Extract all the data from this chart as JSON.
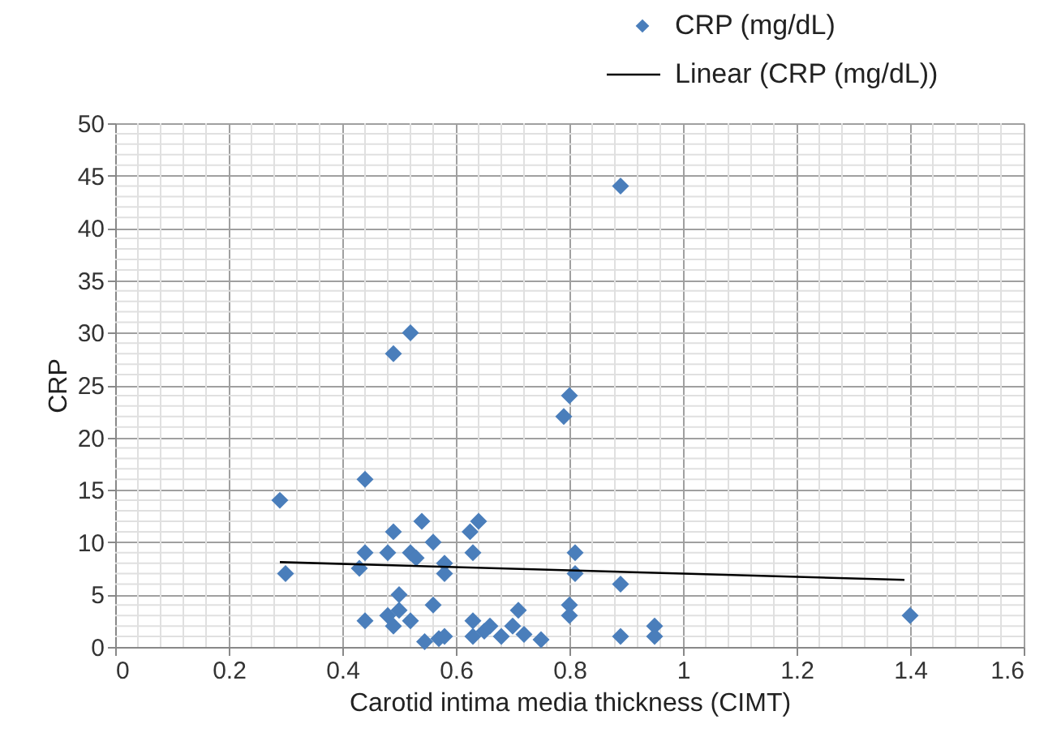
{
  "chart_data": {
    "type": "scatter",
    "xlabel": "Carotid intima media thickness (CIMT)",
    "ylabel": "CRP",
    "xlim": [
      0,
      1.6
    ],
    "xticks": [
      0,
      0.2,
      0.4,
      0.6,
      0.8,
      1,
      1.2,
      1.4,
      1.6
    ],
    "ylim": [
      0,
      50
    ],
    "yticks": [
      0,
      5,
      10,
      15,
      20,
      25,
      30,
      35,
      40,
      45,
      50
    ],
    "grid": true,
    "legend": "top right",
    "marker": "diamond",
    "series": [
      {
        "name": "CRP (mg/dL)",
        "color": "#4a7ebb",
        "x": [
          0.29,
          0.3,
          0.44,
          0.43,
          0.44,
          0.44,
          0.48,
          0.49,
          0.49,
          0.52,
          0.5,
          0.5,
          0.48,
          0.49,
          0.52,
          0.52,
          0.53,
          0.54,
          0.56,
          0.58,
          0.58,
          0.56,
          0.545,
          0.57,
          0.58,
          0.625,
          0.64,
          0.63,
          0.63,
          0.63,
          0.65,
          0.66,
          0.68,
          0.7,
          0.71,
          0.72,
          0.75,
          0.79,
          0.8,
          0.8,
          0.8,
          0.81,
          0.81,
          0.89,
          0.89,
          0.89,
          0.95,
          0.95,
          1.4
        ],
        "values": [
          14,
          7,
          16,
          7.5,
          9,
          2.5,
          9,
          11,
          28,
          30,
          5,
          3.5,
          3,
          2,
          2.5,
          9,
          8.5,
          12,
          10,
          8,
          7,
          4,
          0.5,
          0.8,
          1,
          11,
          12,
          9,
          2.5,
          1,
          1.5,
          2,
          1,
          2,
          3.5,
          1.2,
          0.7,
          22,
          24,
          4,
          3,
          9,
          7,
          6,
          1,
          44,
          2,
          1,
          3
        ]
      },
      {
        "name": "Linear (CRP (mg/dL))",
        "type": "line",
        "color": "#000000",
        "line_style": "solid",
        "marker": "none",
        "x": [
          0.29,
          1.39
        ],
        "values": [
          8.1,
          6.4
        ]
      }
    ]
  }
}
